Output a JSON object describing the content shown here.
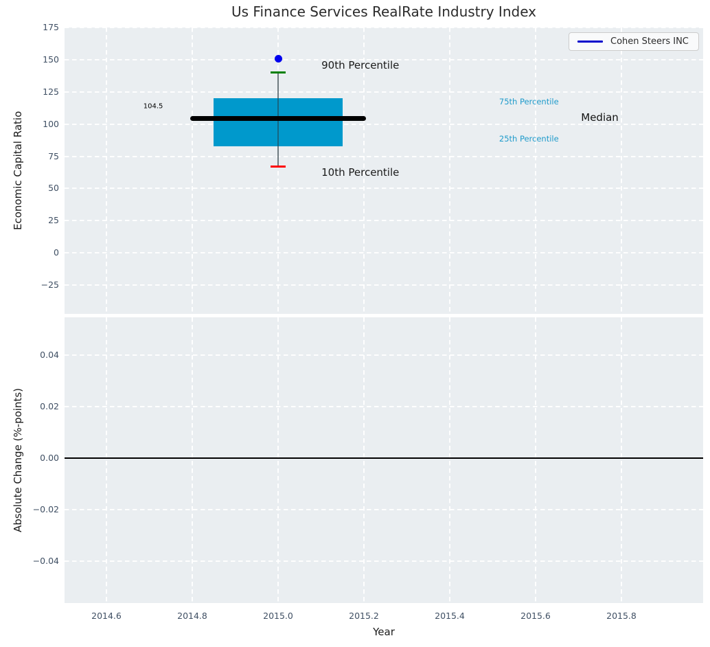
{
  "chart_data": {
    "type": "boxplot",
    "title": "Us Finance Services RealRate Industry Index",
    "xlabel": "Year",
    "xticks": [
      "2014.6",
      "2014.8",
      "2015.0",
      "2015.2",
      "2015.4",
      "2015.6",
      "2015.8"
    ],
    "xlim": [
      2014.5,
      2015.99
    ],
    "grid": true,
    "panels": [
      {
        "name": "top",
        "ylabel": "Economic Capital Ratio",
        "yticks": [
          "175",
          "150",
          "125",
          "100",
          "75",
          "50",
          "25",
          "0",
          "−25"
        ],
        "ylim": [
          -47.4,
          175
        ],
        "box": {
          "year": 2015.0,
          "p10": 67,
          "p25": 83,
          "median": 104.5,
          "p75": 120,
          "p90": 140,
          "box_half_width_years": 0.15,
          "median_half_width_years": 0.205,
          "cap_half_width_years": 0.017,
          "box_color": "#0099cc",
          "median_color": "#000000",
          "whisker_color": "#6f7b80",
          "p90_cap_color": "#008000",
          "p10_cap_color": "#ff0000"
        },
        "company_point": {
          "label": "Cohen Steers INC",
          "year": 2015.0,
          "value": 151,
          "color": "#0000ee"
        },
        "annotations": [
          {
            "text": "90th Percentile",
            "year": 2015.101,
            "value": 145.7,
            "color": "#1a1a1a",
            "size": 15
          },
          {
            "text": "10th Percentile",
            "year": 2015.101,
            "value": 62.5,
            "color": "#1a1a1a",
            "size": 15
          },
          {
            "text": "104.5",
            "year": 2014.686,
            "value": 113.7,
            "color": "#000000",
            "size": 10
          },
          {
            "text": "75th Percentile",
            "year": 2015.515,
            "value": 117.4,
            "color": "#1f9bcb",
            "size": 11.5
          },
          {
            "text": "Median",
            "year": 2015.706,
            "value": 105.1,
            "color": "#111111",
            "size": 15
          },
          {
            "text": "25th Percentile",
            "year": 2015.515,
            "value": 88.6,
            "color": "#1f9bcb",
            "size": 11.5
          }
        ],
        "legend": {
          "label": "Cohen Steers INC",
          "line_color": "#0000cc"
        }
      },
      {
        "name": "bottom",
        "ylabel": "Absolute Change (%-points)",
        "yticks": [
          "0.04",
          "0.02",
          "0.00",
          "−0.02",
          "−0.04"
        ],
        "ylim": [
          -0.0563,
          0.0547
        ],
        "zero_line": {
          "value": 0.0,
          "color": "#000000"
        }
      }
    ]
  }
}
